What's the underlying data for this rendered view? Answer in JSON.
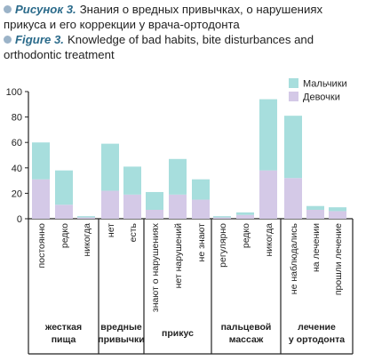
{
  "caption": {
    "ru_label": "Рисунок 3.",
    "ru_text_line1": "Знания о вредных привычках, о нарушениях",
    "ru_text_line2": "прикуса и его коррекции у врача-ортодонта",
    "en_label": "Figure 3.",
    "en_text_line1": "Knowledge of bad habits, bite disturbances and",
    "en_text_line2": "orthodontic treatment"
  },
  "colors": {
    "boys": "#a7dedd",
    "girls": "#d4c9e7",
    "bullet": "#9bb3c8",
    "axis": "#222222"
  },
  "chart_data": {
    "type": "bar",
    "stacked": true,
    "ylim": [
      0,
      100
    ],
    "yticks": [
      0,
      20,
      40,
      60,
      80,
      100
    ],
    "grid": false,
    "legend_position": "top-right",
    "categories": [
      "постоянно",
      "редко",
      "никогда",
      "нет",
      "есть",
      "знают о нарушениях",
      "нет нарушений",
      "не знают",
      "регулярно",
      "редко",
      "никогда",
      "не наблюдались",
      "на лечении",
      "прошли лечение"
    ],
    "series": [
      {
        "name": "Девочки",
        "color": "#d4c9e7",
        "values": [
          31,
          11,
          1,
          22,
          19,
          7,
          19,
          15,
          1,
          3,
          38,
          32,
          7,
          6
        ]
      },
      {
        "name": "Мальчики",
        "color": "#a7dedd",
        "values": [
          29,
          27,
          1,
          37,
          22,
          14,
          28,
          16,
          1,
          2,
          56,
          49,
          3,
          3
        ]
      }
    ],
    "groups": [
      {
        "lines": [
          "жесткая",
          "пища"
        ],
        "categories": [
          0,
          1,
          2
        ]
      },
      {
        "lines": [
          "вредные",
          "привычки"
        ],
        "categories": [
          3,
          4
        ]
      },
      {
        "lines": [
          "прикус"
        ],
        "categories": [
          5,
          6,
          7
        ]
      },
      {
        "lines": [
          "пальцевой",
          "массаж"
        ],
        "categories": [
          8,
          9,
          10
        ]
      },
      {
        "lines": [
          "лечение",
          "у ортодонта"
        ],
        "categories": [
          11,
          12,
          13
        ]
      }
    ]
  }
}
